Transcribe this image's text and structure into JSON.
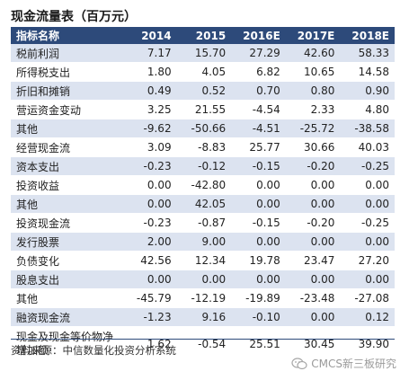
{
  "title": "现金流量表（百万元）",
  "table": {
    "headers": [
      "指标名称",
      "2014",
      "2015",
      "2016E",
      "2017E",
      "2018E"
    ],
    "rows": [
      {
        "name": "税前利润",
        "values": [
          "7.17",
          "15.70",
          "27.29",
          "42.60",
          "58.33"
        ],
        "shaded": true
      },
      {
        "name": "所得税支出",
        "values": [
          "1.80",
          "4.05",
          "6.82",
          "10.65",
          "14.58"
        ],
        "shaded": false
      },
      {
        "name": "折旧和摊销",
        "values": [
          "0.49",
          "0.52",
          "0.70",
          "0.80",
          "0.90"
        ],
        "shaded": true
      },
      {
        "name": "营运资金变动",
        "values": [
          "3.25",
          "21.55",
          "-4.54",
          "2.33",
          "4.80"
        ],
        "shaded": false
      },
      {
        "name": "其他",
        "values": [
          "-9.62",
          "-50.66",
          "-4.51",
          "-25.72",
          "-38.58"
        ],
        "shaded": true
      },
      {
        "name": "经营现金流",
        "values": [
          "3.09",
          "-8.83",
          "25.77",
          "30.66",
          "40.03"
        ],
        "shaded": false
      },
      {
        "name": "资本支出",
        "values": [
          "-0.23",
          "-0.12",
          "-0.15",
          "-0.20",
          "-0.25"
        ],
        "shaded": true
      },
      {
        "name": "投资收益",
        "values": [
          "0.00",
          "-42.80",
          "0.00",
          "0.00",
          "0.00"
        ],
        "shaded": false
      },
      {
        "name": "其他",
        "values": [
          "0.00",
          "42.05",
          "0.00",
          "0.00",
          "0.00"
        ],
        "shaded": true
      },
      {
        "name": "投资现金流",
        "values": [
          "-0.23",
          "-0.87",
          "-0.15",
          "-0.20",
          "-0.25"
        ],
        "shaded": false
      },
      {
        "name": "发行股票",
        "values": [
          "2.00",
          "9.00",
          "0.00",
          "0.00",
          "0.00"
        ],
        "shaded": true
      },
      {
        "name": "负债变化",
        "values": [
          "42.56",
          "12.34",
          "19.78",
          "23.47",
          "27.20"
        ],
        "shaded": false
      },
      {
        "name": "股息支出",
        "values": [
          "0.00",
          "0.00",
          "0.00",
          "0.00",
          "0.00"
        ],
        "shaded": true
      },
      {
        "name": "其他",
        "values": [
          "-45.79",
          "-12.19",
          "-19.89",
          "-23.48",
          "-27.08"
        ],
        "shaded": false
      },
      {
        "name": "融资现金流",
        "values": [
          "-1.23",
          "9.16",
          "-0.10",
          "0.00",
          "0.12"
        ],
        "shaded": true
      },
      {
        "name": "现金及现金等价物净增加额",
        "values": [
          "1.62",
          "-0.54",
          "25.51",
          "30.45",
          "39.90"
        ],
        "shaded": false,
        "tall": true
      }
    ]
  },
  "source": "资料来源：中信数量化投资分析系统",
  "watermark": "CMCS新三板研究",
  "colors": {
    "header_bg": "#2d4a7a",
    "row_shade": "#dce3f0"
  }
}
